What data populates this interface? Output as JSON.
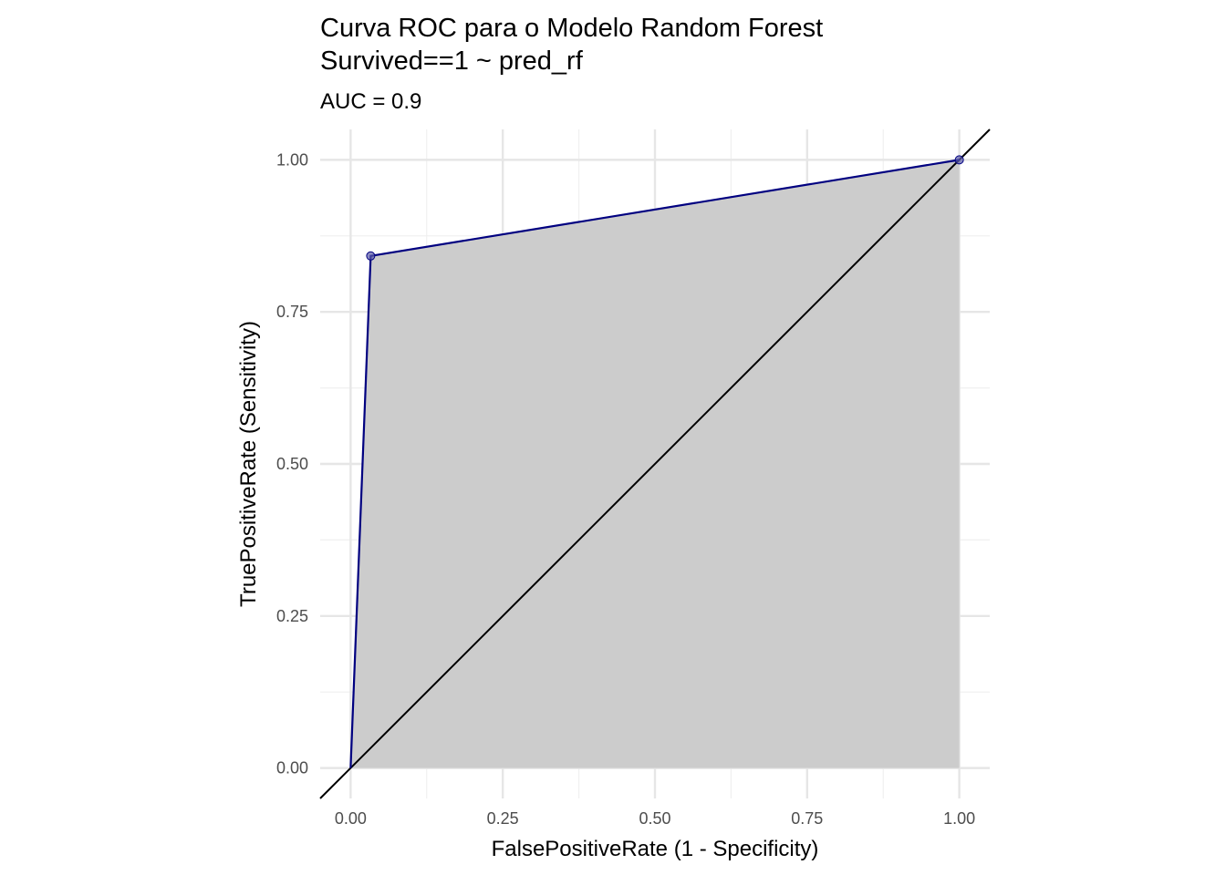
{
  "chart_data": {
    "type": "line",
    "title": "Curva ROC para o Modelo Random Forest\nSurvived==1 ~ pred_rf",
    "title_lines": [
      "Curva ROC para o Modelo Random Forest",
      "Survived==1 ~ pred_rf"
    ],
    "subtitle": "AUC = 0.9",
    "xlabel": "FalsePositiveRate (1 - Specificity)",
    "ylabel": "TruePositiveRate (Sensitivity)",
    "xlim": [
      -0.05,
      1.05
    ],
    "ylim": [
      -0.05,
      1.05
    ],
    "xticks": [
      0,
      0.25,
      0.5,
      0.75,
      1
    ],
    "xtick_labels": [
      "0.00",
      "0.25",
      "0.50",
      "0.75",
      "1.00"
    ],
    "yticks": [
      0,
      0.25,
      0.5,
      0.75,
      1
    ],
    "ytick_labels": [
      "0.00",
      "0.25",
      "0.50",
      "0.75",
      "1.00"
    ],
    "grid": true,
    "series": [
      {
        "kind": "roc_curve",
        "x": [
          0,
          0.033,
          1
        ],
        "y": [
          0,
          0.842,
          1
        ],
        "points_x": [
          0.033,
          1
        ],
        "points_y": [
          0.842,
          1
        ],
        "fill_under": true
      },
      {
        "kind": "reference_diagonal",
        "x": [
          -0.05,
          1.05
        ],
        "y": [
          -0.05,
          1.05
        ]
      }
    ],
    "colors": {
      "curve": "#000080",
      "point": "#5a5aa8",
      "fill": "#cccccc",
      "diagonal": "#000000",
      "grid_major": "#e6e6e6",
      "grid_minor": "#f0f0f0",
      "tick_text": "#4d4d4d"
    }
  }
}
